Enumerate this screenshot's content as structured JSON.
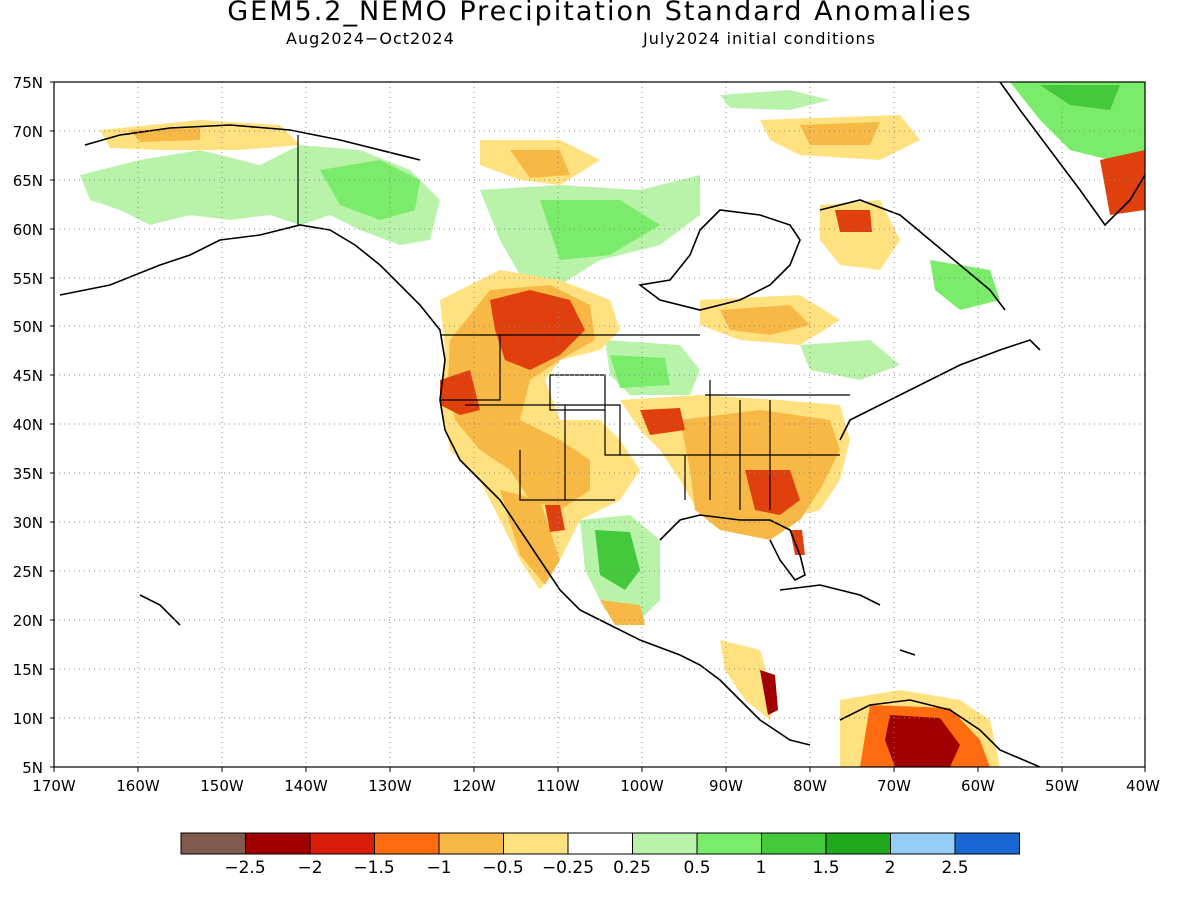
{
  "header": {
    "title": "GEM5.2_NEMO Precipitation Standard Anomalies",
    "period": "Aug2024−Oct2024",
    "init": "July2024 initial conditions"
  },
  "axes": {
    "lat_labels": [
      "75N",
      "70N",
      "65N",
      "60N",
      "55N",
      "50N",
      "45N",
      "40N",
      "35N",
      "30N",
      "25N",
      "20N",
      "15N",
      "10N",
      "5N"
    ],
    "lon_labels": [
      "170W",
      "160W",
      "150W",
      "140W",
      "130W",
      "120W",
      "110W",
      "100W",
      "90W",
      "80W",
      "70W",
      "60W",
      "50W",
      "40W"
    ],
    "lat_range": [
      5,
      75
    ],
    "lon_range": [
      -170,
      -40
    ]
  },
  "colorbar": {
    "colors": [
      "#7f5b4f",
      "#a00000",
      "#d81d0b",
      "#ff6b0f",
      "#f7b845",
      "#ffe27f",
      "#ffffff",
      "#b9f3a9",
      "#7aeb6a",
      "#45c93c",
      "#21a91d",
      "#96cdf6",
      "#1a67d3"
    ],
    "labels": [
      "−2.5",
      "−2",
      "−1.5",
      "−1",
      "−0.5",
      "−0.25",
      "0.25",
      "0.5",
      "1",
      "1.5",
      "2",
      "2.5"
    ]
  },
  "anomaly_fields": [
    {
      "category": "-1.5",
      "color": "#e0400d",
      "region": "northern-rockies-montana"
    },
    {
      "category": "-1",
      "color": "#f7b845",
      "region": "western-us-and-prairies"
    },
    {
      "category": "-1",
      "color": "#f7b845",
      "region": "southeast-us"
    },
    {
      "category": "-1.5",
      "color": "#e0400d",
      "region": "georgia-carolinas"
    },
    {
      "category": "-2",
      "color": "#a00000",
      "region": "venezuela"
    },
    {
      "category": "-2",
      "color": "#a00000",
      "region": "central-america"
    },
    {
      "category": "0.5",
      "color": "#7aeb6a",
      "region": "yukon-alaska"
    },
    {
      "category": "0.5",
      "color": "#7aeb6a",
      "region": "nunavut-hudson"
    },
    {
      "category": "0.5",
      "color": "#7aeb6a",
      "region": "northern-mexico"
    },
    {
      "category": "0.5",
      "color": "#7aeb6a",
      "region": "dakotas"
    },
    {
      "category": "1",
      "color": "#45c93c",
      "region": "greenland"
    }
  ]
}
